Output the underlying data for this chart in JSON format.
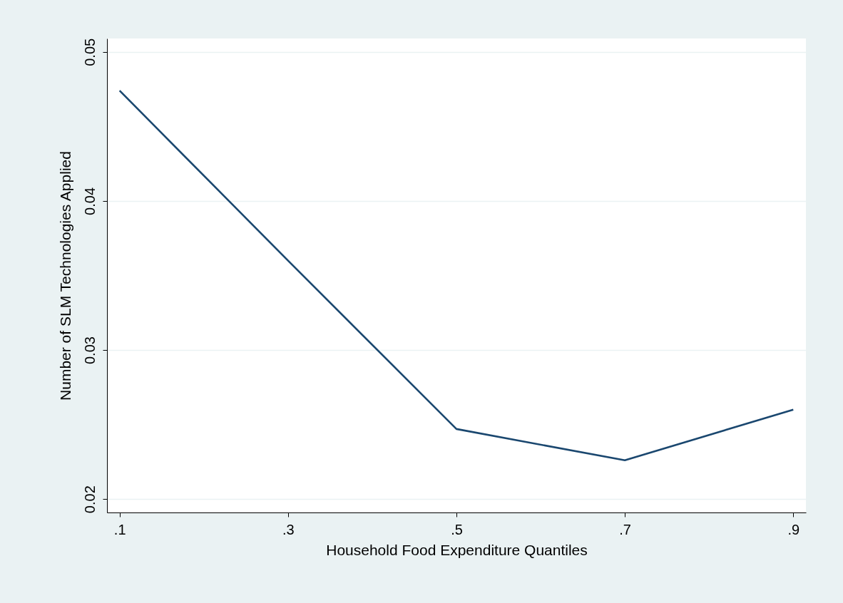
{
  "chart_data": {
    "type": "line",
    "xlabel": "Household Food Expenditure Quantiles",
    "ylabel": "Number of SLM Technologies Applied",
    "x": [
      0.1,
      0.3,
      0.5,
      0.7,
      0.9
    ],
    "series": [
      {
        "color": "#1a476f",
        "values": [
          0.0474,
          0.036,
          0.0247,
          0.0226,
          0.026
        ]
      }
    ],
    "xlim": [
      0.085,
      0.915
    ],
    "ylim": [
      0.0191,
      0.0509
    ],
    "xticks": [
      {
        "value": 0.1,
        "label": ".1"
      },
      {
        "value": 0.3,
        "label": ".3"
      },
      {
        "value": 0.5,
        "label": ".5"
      },
      {
        "value": 0.7,
        "label": ".7"
      },
      {
        "value": 0.9,
        "label": ".9"
      }
    ],
    "yticks": [
      {
        "value": 0.02,
        "label": "0.02"
      },
      {
        "value": 0.03,
        "label": "0.03"
      },
      {
        "value": 0.04,
        "label": "0.04"
      },
      {
        "value": 0.05,
        "label": "0.05"
      }
    ],
    "grid": "y",
    "marker": "none"
  }
}
